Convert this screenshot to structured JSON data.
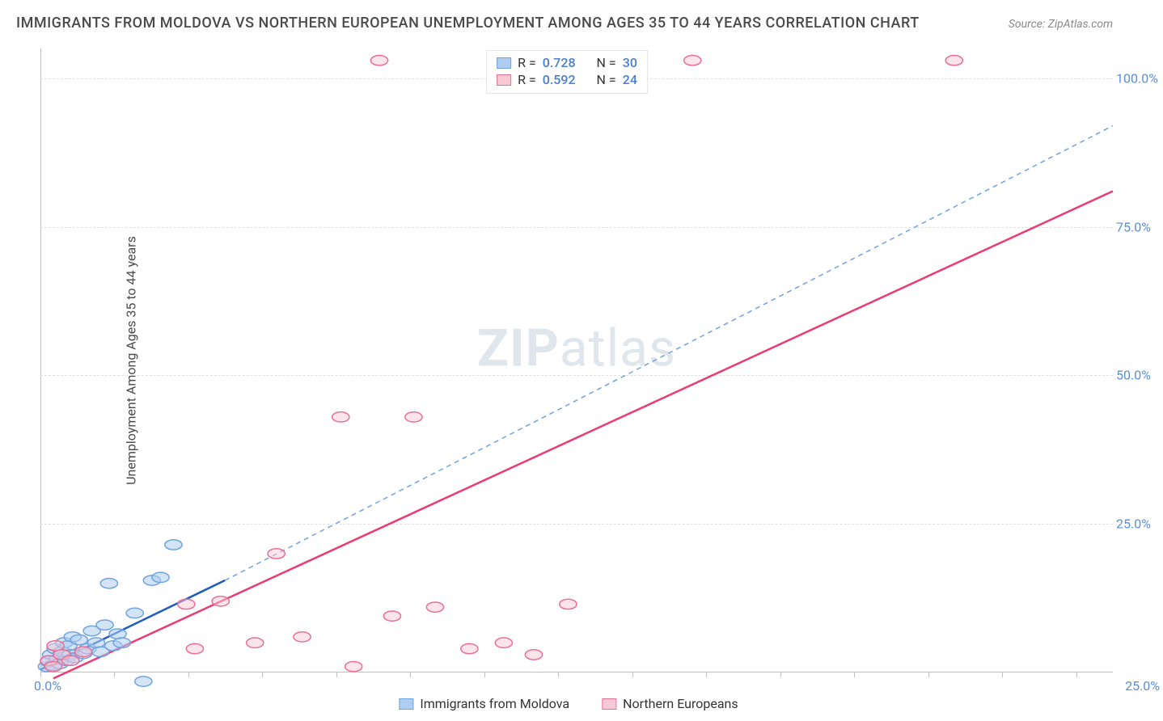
{
  "title": "IMMIGRANTS FROM MOLDOVA VS NORTHERN EUROPEAN UNEMPLOYMENT AMONG AGES 35 TO 44 YEARS CORRELATION CHART",
  "source_label": "Source:",
  "source_site": "ZipAtlas.com",
  "y_axis_label": "Unemployment Among Ages 35 to 44 years",
  "watermark_bold": "ZIP",
  "watermark_light": "atlas",
  "chart": {
    "type": "scatter+regression",
    "x_domain": [
      0,
      25
    ],
    "y_domain": [
      0,
      105
    ],
    "x_tick_positions_pct": [
      0,
      6.9,
      13.8,
      20.7,
      27.6,
      34.5,
      41.4,
      48.3,
      55.2,
      62.1,
      69.0,
      75.9,
      82.8,
      89.7,
      96.6
    ],
    "x_tick_labels": {
      "origin": "0.0%",
      "max": "25.0%"
    },
    "y_ticks": [
      {
        "value": 25,
        "label": "25.0%"
      },
      {
        "value": 50,
        "label": "50.0%"
      },
      {
        "value": 75,
        "label": "75.0%"
      },
      {
        "value": 100,
        "label": "100.0%"
      }
    ],
    "grid_color": "#e0e0e0",
    "axis_color": "#c0c0c0",
    "background_color": "#ffffff",
    "marker_radius": 8,
    "marker_stroke_width": 1.5,
    "series": [
      {
        "name": "Immigrants from Moldova",
        "fill_color": "#aecdf0",
        "stroke_color": "#6fa3e0",
        "fill_opacity": 0.55,
        "R": "0.728",
        "N": "30",
        "reg_line": {
          "x1": 0,
          "y1": 0.5,
          "x2": 4.3,
          "y2": 15.5,
          "color": "#1e5db8",
          "dash": "none",
          "width": 2.5
        },
        "reg_ext": {
          "x1": 4.3,
          "y1": 15.5,
          "x2": 25,
          "y2": 92,
          "color": "#6fa3e0",
          "dash": "6 5",
          "width": 1.5
        },
        "points": [
          {
            "x": 0.15,
            "y": 1.0
          },
          {
            "x": 0.2,
            "y": 1.8
          },
          {
            "x": 0.25,
            "y": 3.0
          },
          {
            "x": 0.3,
            "y": 1.2
          },
          {
            "x": 0.35,
            "y": 4.0
          },
          {
            "x": 0.4,
            "y": 2.2
          },
          {
            "x": 0.45,
            "y": 1.5
          },
          {
            "x": 0.5,
            "y": 3.5
          },
          {
            "x": 0.55,
            "y": 5.0
          },
          {
            "x": 0.6,
            "y": 2.0
          },
          {
            "x": 0.65,
            "y": 4.5
          },
          {
            "x": 0.7,
            "y": 3.0
          },
          {
            "x": 0.75,
            "y": 6.0
          },
          {
            "x": 0.8,
            "y": 2.5
          },
          {
            "x": 0.9,
            "y": 5.5
          },
          {
            "x": 1.0,
            "y": 3.2
          },
          {
            "x": 1.1,
            "y": 4.0
          },
          {
            "x": 1.2,
            "y": 7.0
          },
          {
            "x": 1.3,
            "y": 5.0
          },
          {
            "x": 1.4,
            "y": 3.5
          },
          {
            "x": 1.5,
            "y": 8.0
          },
          {
            "x": 1.6,
            "y": 15.0
          },
          {
            "x": 1.7,
            "y": 4.5
          },
          {
            "x": 1.8,
            "y": 6.5
          },
          {
            "x": 1.9,
            "y": 5.0
          },
          {
            "x": 2.2,
            "y": 10.0
          },
          {
            "x": 2.4,
            "y": -1.5
          },
          {
            "x": 2.6,
            "y": 15.5
          },
          {
            "x": 2.8,
            "y": 16.0
          },
          {
            "x": 3.1,
            "y": 21.5
          }
        ]
      },
      {
        "name": "Northern Europeans",
        "fill_color": "#f7c9d6",
        "stroke_color": "#ea6f94",
        "fill_opacity": 0.5,
        "R": "0.592",
        "N": "24",
        "reg_line": {
          "x1": 0.3,
          "y1": -1.0,
          "x2": 25,
          "y2": 81,
          "color": "#ea3b72",
          "dash": "none",
          "width": 2.5
        },
        "reg_ext": null,
        "points": [
          {
            "x": 0.2,
            "y": 2.0
          },
          {
            "x": 0.3,
            "y": 1.0
          },
          {
            "x": 0.35,
            "y": 4.5
          },
          {
            "x": 0.5,
            "y": 3.0
          },
          {
            "x": 0.7,
            "y": 2.0
          },
          {
            "x": 1.0,
            "y": 3.5
          },
          {
            "x": 3.4,
            "y": 11.5
          },
          {
            "x": 3.6,
            "y": 4.0
          },
          {
            "x": 4.2,
            "y": 12.0
          },
          {
            "x": 5.0,
            "y": 5.0
          },
          {
            "x": 5.5,
            "y": 20.0
          },
          {
            "x": 6.1,
            "y": 6.0
          },
          {
            "x": 7.0,
            "y": 43.0
          },
          {
            "x": 7.3,
            "y": 1.0
          },
          {
            "x": 7.9,
            "y": 103.0
          },
          {
            "x": 8.2,
            "y": 9.5
          },
          {
            "x": 8.7,
            "y": 43.0
          },
          {
            "x": 9.2,
            "y": 11.0
          },
          {
            "x": 10.0,
            "y": 4.0
          },
          {
            "x": 10.8,
            "y": 5.0
          },
          {
            "x": 11.5,
            "y": 3.0
          },
          {
            "x": 12.3,
            "y": 11.5
          },
          {
            "x": 15.2,
            "y": 103.0
          },
          {
            "x": 21.3,
            "y": 103.0
          }
        ]
      }
    ]
  },
  "legend_top": {
    "R_key": "R =",
    "N_key": "N ="
  },
  "legend_bottom": {
    "series1": "Immigrants from Moldova",
    "series2": "Northern Europeans"
  },
  "colors": {
    "title": "#4a4a4a",
    "source": "#888888",
    "tick_label": "#5a8fd6",
    "watermark": "#dfe6ec"
  }
}
